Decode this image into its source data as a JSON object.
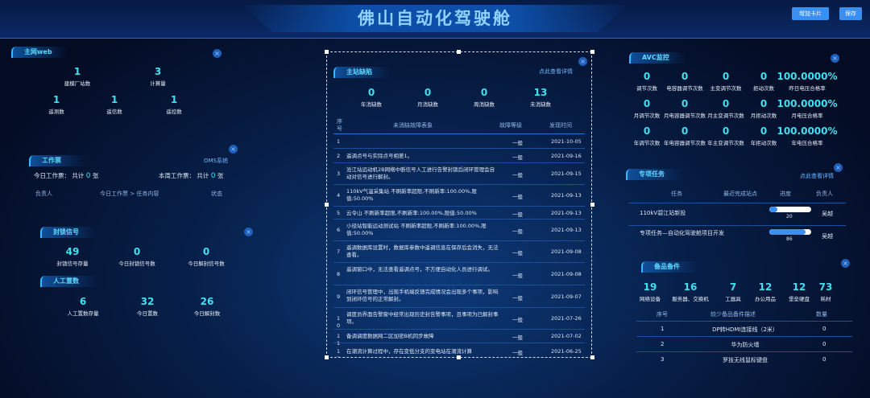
{
  "header": {
    "title": "佛山自动化驾驶舱",
    "add_card": "增加卡片",
    "save": "保存"
  },
  "grid_web": {
    "label": "主网web",
    "stats": [
      {
        "v": "1",
        "l": "建模厂站数"
      },
      {
        "v": "3",
        "l": "计算量"
      },
      {
        "v": "1",
        "l": "遥测数"
      },
      {
        "v": "1",
        "l": "遥信数"
      },
      {
        "v": "1",
        "l": "遥控数"
      }
    ]
  },
  "work_ticket": {
    "label": "工作票",
    "link": "OMS系统",
    "today": "今日工作票：",
    "today_total": "共计",
    "today_count": "0",
    "unit": "张",
    "week": "本周工作票：",
    "week_total": "共计",
    "week_count": "0",
    "week_unit": "张",
    "columns": [
      "负责人",
      "今日工作票 > 任务内容",
      "状态"
    ]
  },
  "blocked": {
    "label": "封锁信号",
    "stats": [
      {
        "v": "49",
        "l": "封锁信号存量"
      },
      {
        "v": "0",
        "l": "今日封锁信号数"
      },
      {
        "v": "0",
        "l": "今日解封信号数"
      }
    ]
  },
  "manual": {
    "label": "人工置数",
    "stats": [
      {
        "v": "6",
        "l": "人工置数存量"
      },
      {
        "v": "32",
        "l": "今日置数"
      },
      {
        "v": "26",
        "l": "今日解封数"
      }
    ]
  },
  "defects": {
    "label": "主站缺陷",
    "link": "点此查看详情",
    "stats": [
      {
        "v": "0",
        "l": "年消缺数"
      },
      {
        "v": "0",
        "l": "月消缺数"
      },
      {
        "v": "0",
        "l": "周消缺数"
      },
      {
        "v": "13",
        "l": "未消缺数"
      }
    ],
    "columns": [
      "序号",
      "未消缺故障表象",
      "故障等级",
      "发现时间"
    ],
    "rows": [
      {
        "n": "1",
        "t": "",
        "g": "一般",
        "d": "2021-10-05"
      },
      {
        "n": "2",
        "t": "遥调点号与实际点号相差1。",
        "g": "一般",
        "d": "2021-09-16"
      },
      {
        "n": "3",
        "t": "沧江站远动机2B网络中断信号人工进行告警封锁后闭环管理会自动对信号进行解封。",
        "g": "一般",
        "d": "2021-09-15"
      },
      {
        "n": "4",
        "t": "110kV气温采集站 不刷新率超限,不刷新率:100.00%,限值:50.00%",
        "g": "一般",
        "d": "2021-09-13"
      },
      {
        "n": "5",
        "t": "云令山 不刷新率超限,不刷新率:100.00%,限值:50.00%",
        "g": "一般",
        "d": "2021-09-13"
      },
      {
        "n": "6",
        "t": "小径站智能远动测试站 不刷新率超限,不刷新率:100.00%,限值:50.00%",
        "g": "一般",
        "d": "2021-09-13"
      },
      {
        "n": "7",
        "t": "遥调数据库设置时，数据库参数中遥调信息在保存后会消失，无法查看。",
        "g": "一般",
        "d": "2021-09-08"
      },
      {
        "n": "8",
        "t": "遥调窗口中，无法查看遥调点号，不方便自动化人员进行调试。",
        "g": "一般",
        "d": "2021-09-08"
      },
      {
        "n": "9",
        "t": "闭环信号管理中，出现手机端反馈完成情况会出现多个事项，影响到闭环信号的正常解封。",
        "g": "一般",
        "d": "2021-09-07"
      },
      {
        "n": "10",
        "t": "调度员界面告警窗中经常出现历史封告警事项，且事项为已解封事项。",
        "g": "一般",
        "d": "2021-07-26"
      },
      {
        "n": "11",
        "t": "备调调度数据网二区加密B机同步故障",
        "g": "一般",
        "d": "2021-07-02"
      },
      {
        "n": "12",
        "t": "在潮流计算过程中，存在变低分支的变电站在潮流计算",
        "g": "一般",
        "d": "2021-06-25"
      }
    ]
  },
  "avc": {
    "label": "AVC监控",
    "rows": [
      [
        {
          "v": "0",
          "l": "调节次数"
        },
        {
          "v": "0",
          "l": "电容器调节次数"
        },
        {
          "v": "0",
          "l": "主变调节次数"
        },
        {
          "v": "0",
          "l": "拒动次数"
        },
        {
          "v": "100.0000%",
          "l": "昨日电压合格率"
        }
      ],
      [
        {
          "v": "0",
          "l": "月调节次数"
        },
        {
          "v": "0",
          "l": "月电容器调节次数"
        },
        {
          "v": "0",
          "l": "月主变调节次数"
        },
        {
          "v": "0",
          "l": "月拒动次数"
        },
        {
          "v": "100.0000%",
          "l": "月电压合格率"
        }
      ],
      [
        {
          "v": "0",
          "l": "年调节次数"
        },
        {
          "v": "0",
          "l": "年电容器调节次数"
        },
        {
          "v": "0",
          "l": "年主变调节次数"
        },
        {
          "v": "0",
          "l": "年拒动次数"
        },
        {
          "v": "100.0000%",
          "l": "年电压合格率"
        }
      ]
    ]
  },
  "tasks": {
    "label": "专项任务",
    "link": "点此查看详情",
    "columns": [
      "任务",
      "最近完成站点",
      "进度",
      "负责人"
    ],
    "rows": [
      {
        "task": "110kV碧江站新投",
        "site": "",
        "progress": 20,
        "progress_label": "20",
        "owner": "吴越"
      },
      {
        "task": "专项任务—自动化驾驶舱项目开发",
        "site": "",
        "progress": 86,
        "progress_label": "86",
        "owner": "吴越"
      }
    ]
  },
  "spares": {
    "label": "备品备件",
    "stats": [
      {
        "v": "19",
        "l": "网络设备"
      },
      {
        "v": "16",
        "l": "服务器、交换机"
      },
      {
        "v": "7",
        "l": "工器具"
      },
      {
        "v": "12",
        "l": "办公用品"
      },
      {
        "v": "12",
        "l": "堡垒硬盘"
      },
      {
        "v": "73",
        "l": "耗材"
      }
    ],
    "columns": [
      "序号",
      "较少备品备件描述",
      "数量"
    ],
    "rows": [
      {
        "n": "1",
        "d": "DP转HDMI连接线（2米）",
        "q": "0"
      },
      {
        "n": "2",
        "d": "华为防火墙",
        "q": "0"
      },
      {
        "n": "3",
        "d": "罗技无线鼠标键盘",
        "q": "0"
      }
    ]
  },
  "colors": {
    "accent": "#3fe0f0",
    "button": "#3b8ff0",
    "label": "#5fd9ff"
  }
}
